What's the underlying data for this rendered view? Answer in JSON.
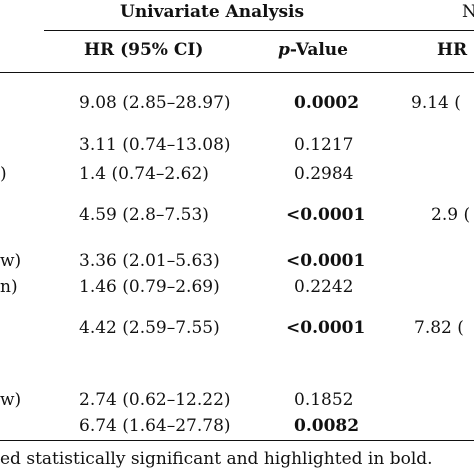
{
  "header": {
    "group_label": "Univariate Analysis",
    "group_label_right": "N",
    "col_hr": "HR (95% CI)",
    "col_p_italic": "p",
    "col_p_rest": "-Value",
    "col_hr_right": "HR"
  },
  "rows": [
    {
      "left": "",
      "hr": "9.08 (2.85–28.97)",
      "p": "0.0002",
      "right": "9.14 ("
    },
    {
      "left": "",
      "hr": "3.11 (0.74–13.08)",
      "p": "0.1217",
      "right": ""
    },
    {
      "left": ")",
      "hr": "1.4 (0.74–2.62)",
      "p": "0.2984",
      "right": ""
    },
    {
      "left": "",
      "hr": "4.59 (2.8–7.53)",
      "p": "<0.0001",
      "right": "2.9 ("
    },
    {
      "left": "w)",
      "hr": "3.36 (2.01–5.63)",
      "p": "<0.0001",
      "right": ""
    },
    {
      "left": "n)",
      "hr": "1.46 (0.79–2.69)",
      "p": "0.2242",
      "right": ""
    },
    {
      "left": "",
      "hr": "4.42 (2.59–7.55)",
      "p": "<0.0001",
      "right": "7.82 ("
    },
    {
      "left": "w)",
      "hr": "2.74 (0.62–12.22)",
      "p": "0.1852",
      "right": ""
    },
    {
      "left": "",
      "hr": "6.74 (1.64–27.78)",
      "p": "0.0082",
      "right": ""
    }
  ],
  "footnote": "ed statistically significant and highlighted in bold."
}
